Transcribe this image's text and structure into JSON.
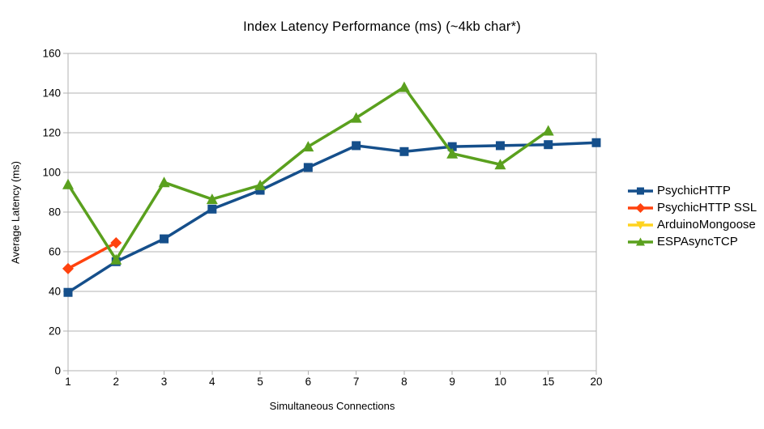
{
  "chart_data": {
    "type": "line",
    "title": "Index Latency Performance (ms) (~4kb char*)",
    "xlabel": "Simultaneous Connections",
    "ylabel": "Average Latency (ms)",
    "categories": [
      "1",
      "2",
      "3",
      "4",
      "5",
      "6",
      "7",
      "8",
      "9",
      "10",
      "15",
      "20"
    ],
    "ylim": [
      0,
      160
    ],
    "yticks": [
      0,
      20,
      40,
      60,
      80,
      100,
      120,
      140,
      160
    ],
    "grid": "horizontal",
    "legend_position": "right",
    "axis_color": "#b3b3b3",
    "series": [
      {
        "name": "PsychicHTTP",
        "color": "#154f8b",
        "marker": "square",
        "values": [
          39.5,
          55,
          66.5,
          81.5,
          91,
          102.5,
          113.5,
          110.5,
          113,
          113.5,
          114,
          115
        ]
      },
      {
        "name": "PsychicHTTP SSL",
        "color": "#ff420e",
        "marker": "diamond",
        "values": [
          51.5,
          64.5,
          null,
          null,
          null,
          null,
          null,
          null,
          null,
          null,
          null,
          null
        ]
      },
      {
        "name": "ArduinoMongoose",
        "color": "#ffd320",
        "marker": "triangle-down",
        "values": [
          null,
          null,
          null,
          null,
          null,
          null,
          null,
          null,
          null,
          null,
          null,
          null
        ]
      },
      {
        "name": "ESPAsyncTCP",
        "color": "#5aa01e",
        "marker": "triangle-up",
        "values": [
          94,
          56,
          95,
          86.5,
          93.5,
          113,
          127.5,
          143,
          109.5,
          104,
          121,
          null
        ]
      }
    ]
  }
}
